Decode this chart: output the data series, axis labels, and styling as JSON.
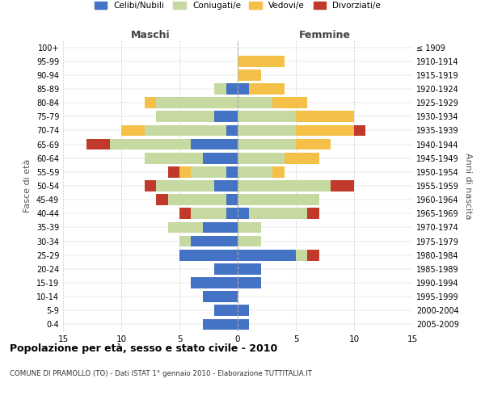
{
  "age_groups": [
    "0-4",
    "5-9",
    "10-14",
    "15-19",
    "20-24",
    "25-29",
    "30-34",
    "35-39",
    "40-44",
    "45-49",
    "50-54",
    "55-59",
    "60-64",
    "65-69",
    "70-74",
    "75-79",
    "80-84",
    "85-89",
    "90-94",
    "95-99",
    "100+"
  ],
  "birth_years": [
    "2005-2009",
    "2000-2004",
    "1995-1999",
    "1990-1994",
    "1985-1989",
    "1980-1984",
    "1975-1979",
    "1970-1974",
    "1965-1969",
    "1960-1964",
    "1955-1959",
    "1950-1954",
    "1945-1949",
    "1940-1944",
    "1935-1939",
    "1930-1934",
    "1925-1929",
    "1920-1924",
    "1915-1919",
    "1910-1914",
    "≤ 1909"
  ],
  "maschi": {
    "celibi": [
      3,
      2,
      3,
      4,
      2,
      5,
      4,
      3,
      1,
      1,
      2,
      1,
      3,
      4,
      1,
      2,
      0,
      1,
      0,
      0,
      0
    ],
    "coniugati": [
      0,
      0,
      0,
      0,
      0,
      0,
      1,
      3,
      3,
      5,
      5,
      3,
      5,
      7,
      7,
      5,
      7,
      1,
      0,
      0,
      0
    ],
    "vedovi": [
      0,
      0,
      0,
      0,
      0,
      0,
      0,
      0,
      0,
      0,
      0,
      1,
      0,
      0,
      2,
      0,
      1,
      0,
      0,
      0,
      0
    ],
    "divorziati": [
      0,
      0,
      0,
      0,
      0,
      0,
      0,
      0,
      1,
      1,
      1,
      1,
      0,
      2,
      0,
      0,
      0,
      0,
      0,
      0,
      0
    ]
  },
  "femmine": {
    "nubili": [
      1,
      1,
      0,
      2,
      2,
      5,
      0,
      0,
      1,
      0,
      0,
      0,
      0,
      0,
      0,
      0,
      0,
      1,
      0,
      0,
      0
    ],
    "coniugate": [
      0,
      0,
      0,
      0,
      0,
      1,
      2,
      2,
      5,
      7,
      8,
      3,
      4,
      5,
      5,
      5,
      3,
      0,
      0,
      0,
      0
    ],
    "vedove": [
      0,
      0,
      0,
      0,
      0,
      0,
      0,
      0,
      0,
      0,
      0,
      1,
      3,
      3,
      5,
      5,
      3,
      3,
      2,
      4,
      0
    ],
    "divorziate": [
      0,
      0,
      0,
      0,
      0,
      1,
      0,
      0,
      1,
      0,
      2,
      0,
      0,
      0,
      1,
      0,
      0,
      0,
      0,
      0,
      0
    ]
  },
  "colors": {
    "celibi": "#4472c4",
    "coniugati": "#c5d9a0",
    "vedovi": "#f5c048",
    "divorziati": "#c0392b"
  },
  "xlim": 15,
  "title": "Popolazione per età, sesso e stato civile - 2010",
  "subtitle": "COMUNE DI PRAMOLLO (TO) - Dati ISTAT 1° gennaio 2010 - Elaborazione TUTTITALIA.IT",
  "ylabel_left": "Fasce di età",
  "ylabel_right": "Anni di nascita",
  "xlabel_maschi": "Maschi",
  "xlabel_femmine": "Femmine",
  "bg_color": "#ffffff",
  "grid_color": "#cccccc"
}
